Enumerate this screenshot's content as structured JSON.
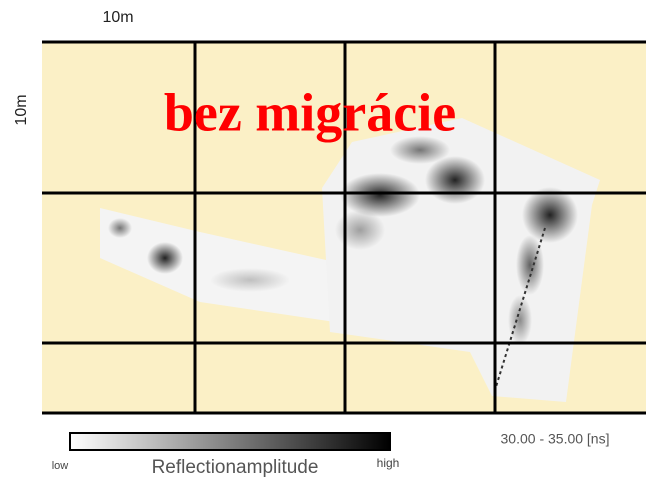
{
  "figure": {
    "scale_x": "10m",
    "scale_y": "10m",
    "title": "bez migrácie",
    "time_window": "30.00 - 35.00 [ns]",
    "legend": {
      "low": "low",
      "label": "Reflectionamplitude",
      "high": "high"
    }
  }
}
